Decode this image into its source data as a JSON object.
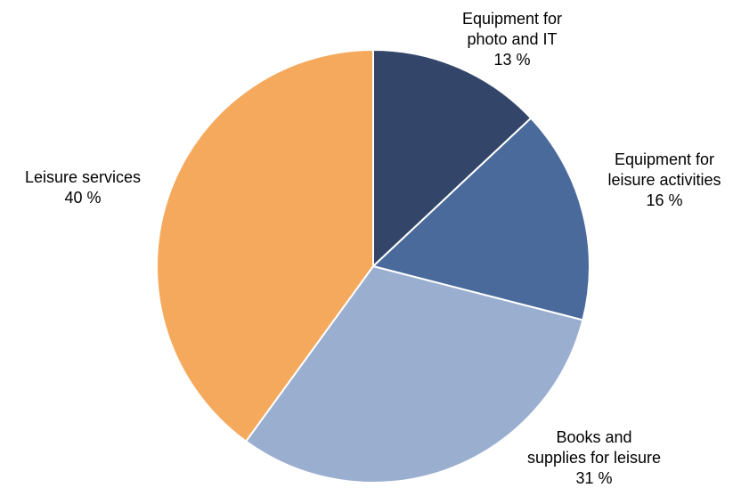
{
  "chart_data": {
    "type": "pie",
    "start": "top",
    "direction": "clockwise",
    "slices": [
      {
        "key": "photo-it",
        "label_lines": [
          "Equipment for",
          "photo and IT"
        ],
        "value": 13,
        "value_label": "13 %",
        "color": "#334669"
      },
      {
        "key": "leisure-activities",
        "label_lines": [
          "Equipment for",
          "leisure activities"
        ],
        "value": 16,
        "value_label": "16 %",
        "color": "#4a6a9c"
      },
      {
        "key": "books-supplies",
        "label_lines": [
          "Books and",
          "supplies for leisure"
        ],
        "value": 31,
        "value_label": "31 %",
        "color": "#9aaed0"
      },
      {
        "key": "leisure-services",
        "label_lines": [
          "Leisure services"
        ],
        "value": 40,
        "value_label": "40 %",
        "color": "#f5a95c"
      }
    ]
  }
}
